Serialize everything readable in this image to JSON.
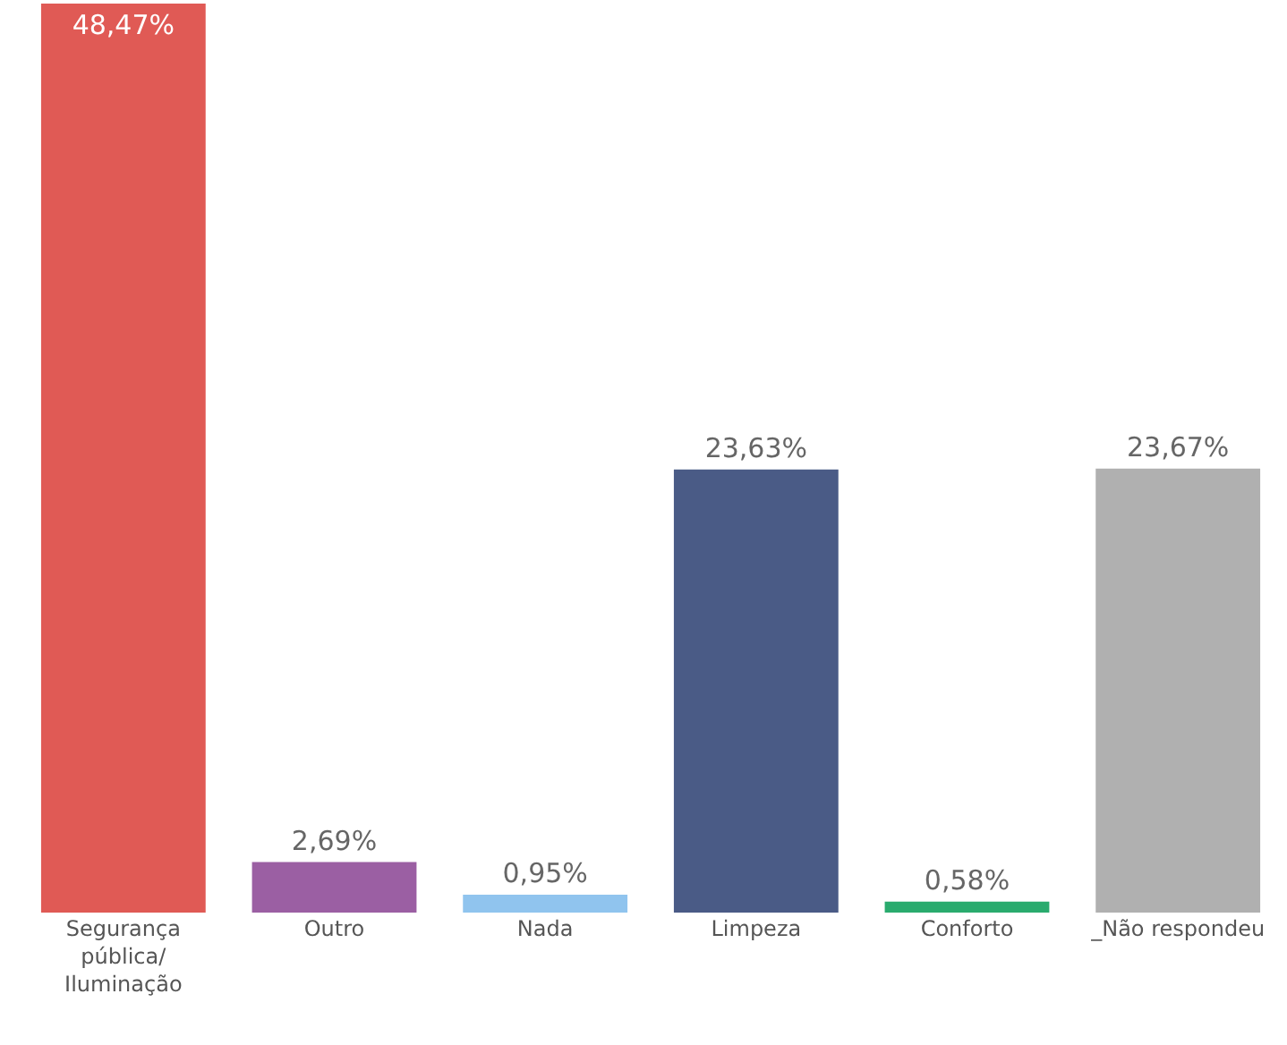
{
  "chart_data": {
    "type": "bar",
    "categories": [
      "Segurança pública/ Iluminação",
      "Outro",
      "Nada",
      "Limpeza",
      "Conforto",
      "_Não respondeu"
    ],
    "values": [
      48.47,
      2.69,
      0.95,
      23.63,
      0.58,
      23.67
    ],
    "colors": [
      "#e05a55",
      "#9b5fa3",
      "#90c4ee",
      "#4a5b86",
      "#2aab6e",
      "#b0b0b0"
    ],
    "value_labels": [
      "48,47%",
      "2,69%",
      "0,95%",
      "23,63%",
      "0,58%",
      "23,67%"
    ]
  }
}
